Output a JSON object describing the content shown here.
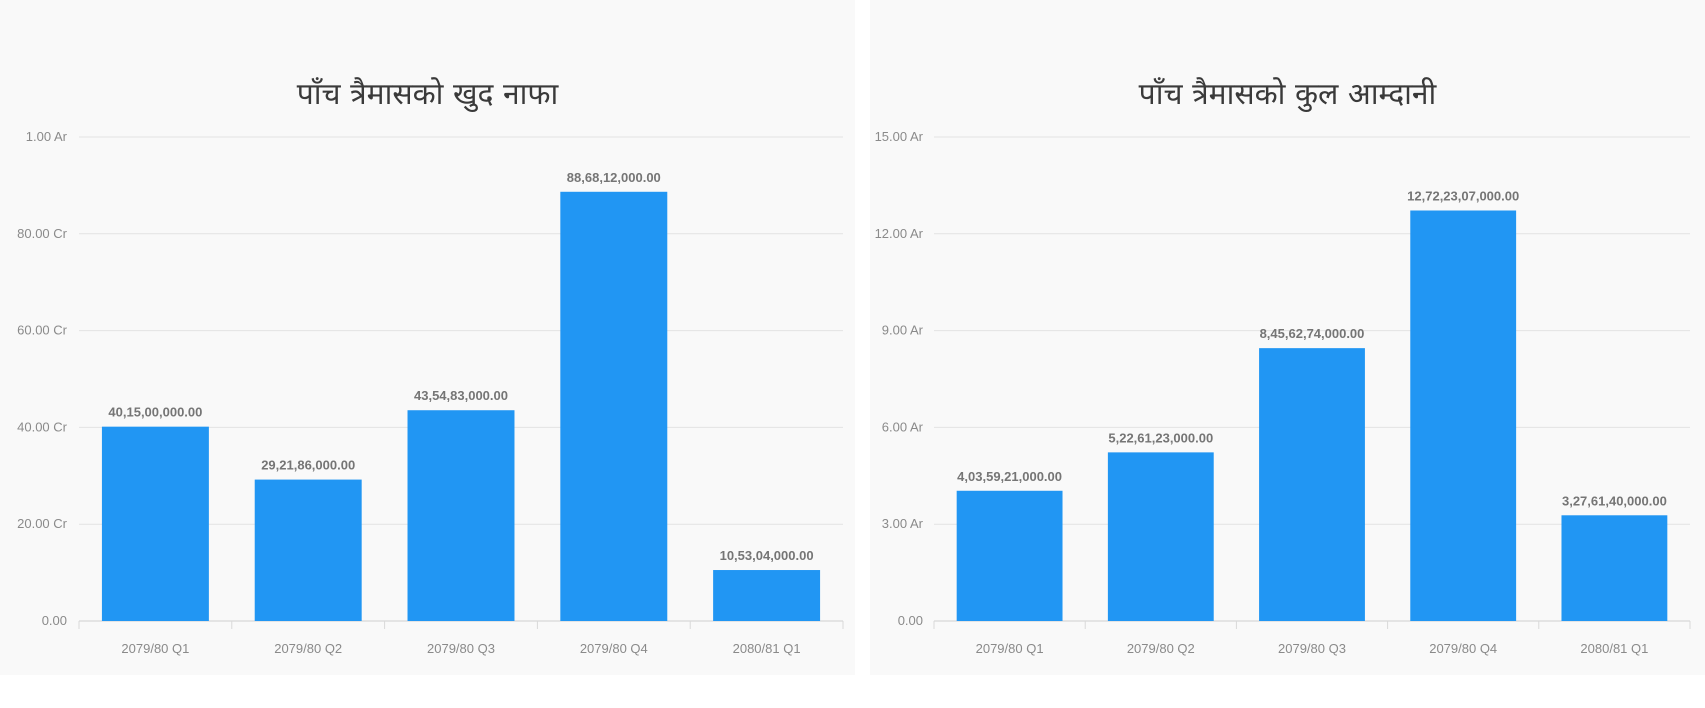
{
  "chart_data": [
    {
      "type": "bar",
      "title": "पाँच त्रैमासको खुद नाफा",
      "categories": [
        "2079/80 Q1",
        "2079/80 Q2",
        "2079/80 Q3",
        "2079/80 Q4",
        "2080/81 Q1"
      ],
      "values": [
        401500000,
        292186000,
        435483000,
        886812000,
        105304000
      ],
      "data_labels": [
        "40,15,00,000.00",
        "29,21,86,000.00",
        "43,54,83,000.00",
        "88,68,12,000.00",
        "10,53,04,000.00"
      ],
      "yticks": [
        0,
        200000000,
        400000000,
        600000000,
        800000000,
        1000000000
      ],
      "ytick_labels": [
        "0.00",
        "20.00 Cr",
        "40.00 Cr",
        "60.00 Cr",
        "80.00 Cr",
        "1.00 Ar"
      ],
      "ylim": [
        0,
        1000000000
      ],
      "xlabel": "",
      "ylabel": "",
      "grid": true,
      "bar_color": "#2196f3"
    },
    {
      "type": "bar",
      "title": "पाँच त्रैमासको कुल आम्दानी",
      "categories": [
        "2079/80 Q1",
        "2079/80 Q2",
        "2079/80 Q3",
        "2079/80 Q4",
        "2080/81 Q1"
      ],
      "values": [
        4035921000,
        5226123000,
        8456274000,
        12722307000,
        3276140000
      ],
      "data_labels": [
        "4,03,59,21,000.00",
        "5,22,61,23,000.00",
        "8,45,62,74,000.00",
        "12,72,23,07,000.00",
        "3,27,61,40,000.00"
      ],
      "yticks": [
        0,
        3000000000,
        6000000000,
        9000000000,
        12000000000,
        15000000000
      ],
      "ytick_labels": [
        "0.00",
        "3.00 Ar",
        "6.00 Ar",
        "9.00 Ar",
        "12.00 Ar",
        "15.00 Ar"
      ],
      "ylim": [
        0,
        15000000000
      ],
      "xlabel": "",
      "ylabel": "",
      "grid": true,
      "bar_color": "#2196f3"
    }
  ]
}
